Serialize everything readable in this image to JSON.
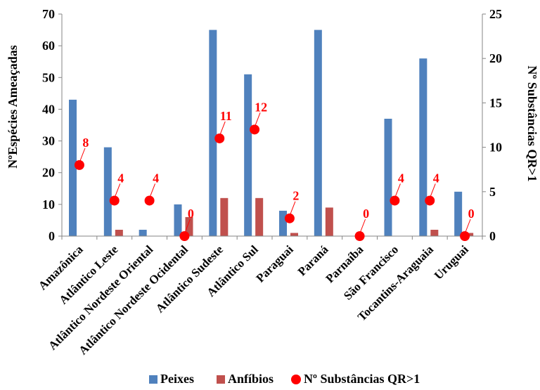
{
  "chart_data": {
    "type": "bar",
    "categories": [
      "Amazônica",
      "Atlântico Leste",
      "Atlântico Nordeste Oriental",
      "Atlântico Nordeste Ocidental",
      "Atlântico Sudeste",
      "Atlântico Sul",
      "Paraguai",
      "Paraná",
      "Parnaíba",
      "São Francisco",
      "Tocantins-Araguaia",
      "Uruguai"
    ],
    "series": [
      {
        "name": "Peixes",
        "axis": "left",
        "kind": "bar",
        "color": "#4f81bd",
        "values": [
          43,
          28,
          2,
          10,
          65,
          51,
          8,
          65,
          0,
          37,
          56,
          14
        ]
      },
      {
        "name": "Anfíbios",
        "axis": "left",
        "kind": "bar",
        "color": "#c0504d",
        "values": [
          0,
          2,
          0,
          6,
          12,
          12,
          1,
          9,
          0,
          0,
          2,
          1
        ]
      },
      {
        "name": "Nº Substâncias QR>1",
        "axis": "right",
        "kind": "scatter",
        "color": "#ff0000",
        "values": [
          8,
          4,
          4,
          0,
          11,
          12,
          2,
          null,
          0,
          4,
          4,
          0
        ],
        "labels": [
          "8",
          "4",
          "4",
          "0",
          "11",
          "12",
          "2",
          "",
          "0",
          "4",
          "4",
          "0"
        ]
      }
    ],
    "ylabel": "NºEspécies Ameaçadas",
    "y2label": "Nº Substâncias QR>1",
    "ylim": [
      0,
      70
    ],
    "y2lim": [
      0,
      25
    ],
    "yticks": [
      "0",
      "10",
      "20",
      "30",
      "40",
      "50",
      "60",
      "70"
    ],
    "y2ticks": [
      "0",
      "5",
      "10",
      "15",
      "20",
      "25"
    ],
    "grid": false,
    "legend_position": "bottom"
  }
}
